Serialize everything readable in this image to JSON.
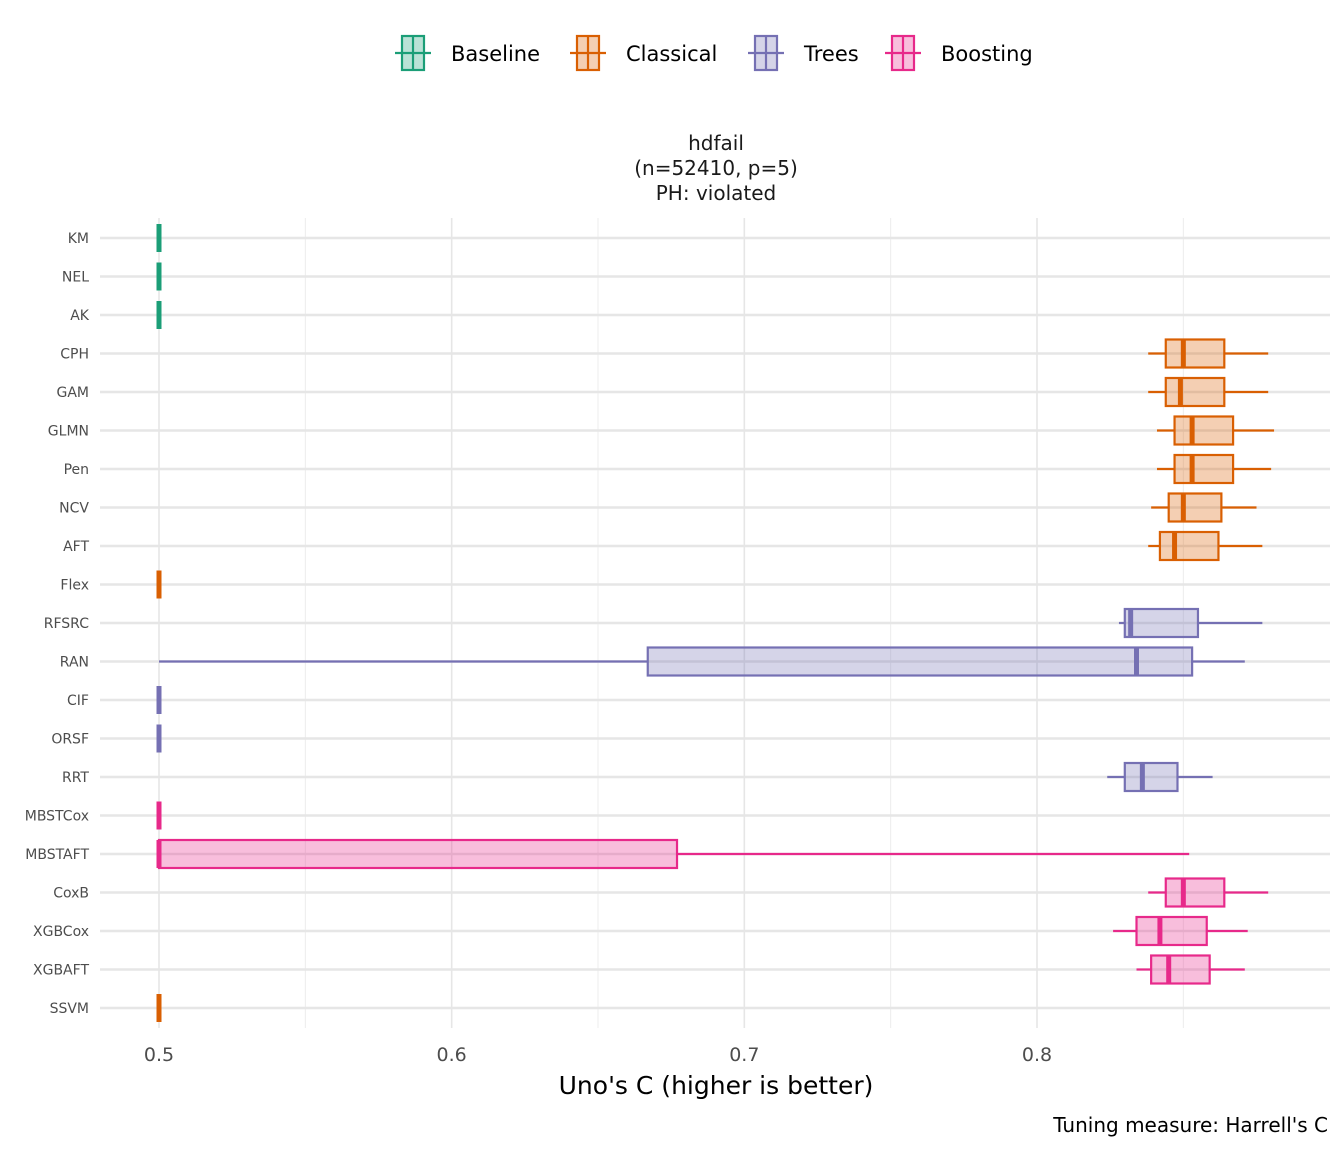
{
  "chart_data": {
    "type": "box",
    "title_lines": [
      "hdfail",
      "(n=52410, p=5)",
      "PH: violated"
    ],
    "xlabel": "Uno's C (higher is better)",
    "caption": "Tuning measure: Harrell's C",
    "xlim": [
      0.48,
      0.9
    ],
    "x_ticks": [
      0.5,
      0.6,
      0.7,
      0.8
    ],
    "x_tick_labels": [
      "0.5",
      "0.6",
      "0.7",
      "0.8"
    ],
    "x_minor_ticks": [
      0.55,
      0.65,
      0.75,
      0.85
    ],
    "legend": {
      "position": "top",
      "entries": [
        {
          "name": "Baseline",
          "color": "#1b9e77"
        },
        {
          "name": "Classical",
          "color": "#d95f02"
        },
        {
          "name": "Trees",
          "color": "#7570b3"
        },
        {
          "name": "Boosting",
          "color": "#e7298a"
        }
      ]
    },
    "models": [
      {
        "name": "KM",
        "group": "Baseline",
        "min": 0.5,
        "q1": 0.5,
        "median": 0.5,
        "q3": 0.5,
        "max": 0.5
      },
      {
        "name": "NEL",
        "group": "Baseline",
        "min": 0.5,
        "q1": 0.5,
        "median": 0.5,
        "q3": 0.5,
        "max": 0.5
      },
      {
        "name": "AK",
        "group": "Baseline",
        "min": 0.5,
        "q1": 0.5,
        "median": 0.5,
        "q3": 0.5,
        "max": 0.5
      },
      {
        "name": "CPH",
        "group": "Classical",
        "min": 0.838,
        "q1": 0.844,
        "median": 0.85,
        "q3": 0.864,
        "max": 0.879
      },
      {
        "name": "GAM",
        "group": "Classical",
        "min": 0.838,
        "q1": 0.844,
        "median": 0.849,
        "q3": 0.864,
        "max": 0.879
      },
      {
        "name": "GLMN",
        "group": "Classical",
        "min": 0.841,
        "q1": 0.847,
        "median": 0.853,
        "q3": 0.867,
        "max": 0.881
      },
      {
        "name": "Pen",
        "group": "Classical",
        "min": 0.841,
        "q1": 0.847,
        "median": 0.853,
        "q3": 0.867,
        "max": 0.88
      },
      {
        "name": "NCV",
        "group": "Classical",
        "min": 0.839,
        "q1": 0.845,
        "median": 0.85,
        "q3": 0.863,
        "max": 0.875
      },
      {
        "name": "AFT",
        "group": "Classical",
        "min": 0.838,
        "q1": 0.842,
        "median": 0.847,
        "q3": 0.862,
        "max": 0.877
      },
      {
        "name": "Flex",
        "group": "Classical",
        "min": 0.5,
        "q1": 0.5,
        "median": 0.5,
        "q3": 0.5,
        "max": 0.5
      },
      {
        "name": "RFSRC",
        "group": "Trees",
        "min": 0.828,
        "q1": 0.83,
        "median": 0.832,
        "q3": 0.855,
        "max": 0.877
      },
      {
        "name": "RAN",
        "group": "Trees",
        "min": 0.5,
        "q1": 0.667,
        "median": 0.834,
        "q3": 0.853,
        "max": 0.871
      },
      {
        "name": "CIF",
        "group": "Trees",
        "min": 0.5,
        "q1": 0.5,
        "median": 0.5,
        "q3": 0.5,
        "max": 0.5
      },
      {
        "name": "ORSF",
        "group": "Trees",
        "min": 0.5,
        "q1": 0.5,
        "median": 0.5,
        "q3": 0.5,
        "max": 0.5
      },
      {
        "name": "RRT",
        "group": "Trees",
        "min": 0.824,
        "q1": 0.83,
        "median": 0.836,
        "q3": 0.848,
        "max": 0.86
      },
      {
        "name": "MBSTCox",
        "group": "Boosting",
        "min": 0.5,
        "q1": 0.5,
        "median": 0.5,
        "q3": 0.5,
        "max": 0.5
      },
      {
        "name": "MBSTAFT",
        "group": "Boosting",
        "min": 0.5,
        "q1": 0.5,
        "median": 0.5,
        "q3": 0.677,
        "max": 0.852
      },
      {
        "name": "CoxB",
        "group": "Boosting",
        "min": 0.838,
        "q1": 0.844,
        "median": 0.85,
        "q3": 0.864,
        "max": 0.879
      },
      {
        "name": "XGBCox",
        "group": "Boosting",
        "min": 0.826,
        "q1": 0.834,
        "median": 0.842,
        "q3": 0.858,
        "max": 0.872
      },
      {
        "name": "XGBAFT",
        "group": "Boosting",
        "min": 0.834,
        "q1": 0.839,
        "median": 0.845,
        "q3": 0.859,
        "max": 0.871
      },
      {
        "name": "SSVM",
        "group": "Classical",
        "min": 0.5,
        "q1": 0.5,
        "median": 0.5,
        "q3": 0.5,
        "max": 0.5
      }
    ]
  }
}
